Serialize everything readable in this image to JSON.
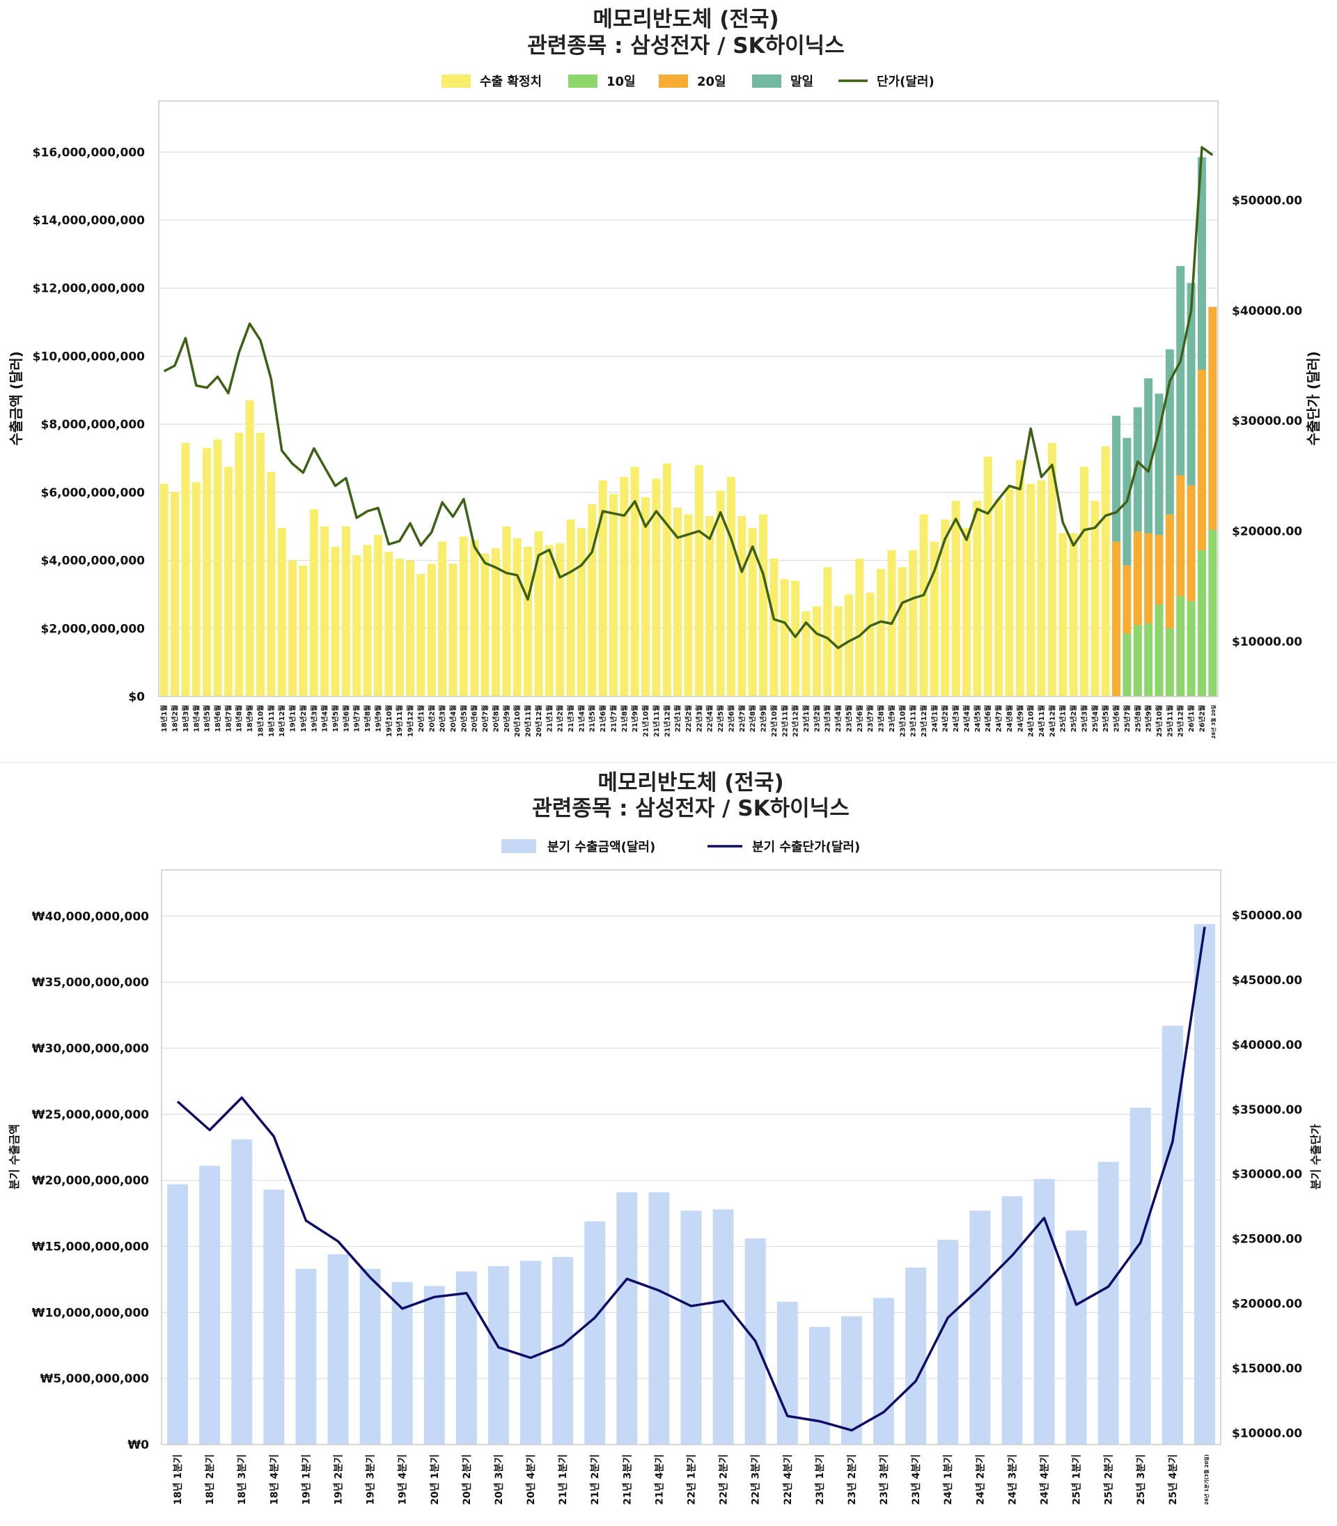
{
  "chart_data": [
    {
      "type": "bar",
      "title": [
        "메모리반도체 (전국)",
        "관련종목 : 삼성전자 / SK하이닉스"
      ],
      "ylabel_left": "수출금액 (달러)",
      "ylabel_right": "수출단가 (달러)",
      "ylim_left": [
        0,
        17500000000
      ],
      "yticks_left": [
        "$0",
        "$2,000,000,000",
        "$4,000,000,000",
        "$6,000,000,000",
        "$8,000,000,000",
        "$10,000,000,000",
        "$12,000,000,000",
        "$14,000,000,000",
        "$16,000,000,000"
      ],
      "ylim_right": [
        5000,
        59000
      ],
      "yticks_right": [
        "$10000.00",
        "$20000.00",
        "$30000.00",
        "$40000.00",
        "$50000.00"
      ],
      "legend": [
        "수출 확정치",
        "10일",
        "20일",
        "말일",
        "단가(달러)"
      ],
      "colors": {
        "confirmed": "#f9ee6b",
        "d10": "#8cd66c",
        "d20": "#f7ac33",
        "end": "#73b8a0",
        "price": "#3d6115"
      },
      "categories": [
        "18년1월",
        "18년2월",
        "18년3월",
        "18년4월",
        "18년5월",
        "18년6월",
        "18년7월",
        "18년8월",
        "18년9월",
        "18년10월",
        "18년11월",
        "18년12월",
        "19년1월",
        "19년2월",
        "19년3월",
        "19년4월",
        "19년5월",
        "19년6월",
        "19년7월",
        "19년8월",
        "19년9월",
        "19년10월",
        "19년11월",
        "19년12월",
        "20년1월",
        "20년2월",
        "20년3월",
        "20년4월",
        "20년5월",
        "20년6월",
        "20년7월",
        "20년8월",
        "20년9월",
        "20년10월",
        "20년11월",
        "20년12월",
        "21년1월",
        "21년2월",
        "21년3월",
        "21년4월",
        "21년5월",
        "21년6월",
        "21년7월",
        "21년8월",
        "21년9월",
        "21년10월",
        "21년11월",
        "21년12월",
        "22년1월",
        "22년2월",
        "22년3월",
        "22년4월",
        "22년5월",
        "22년6월",
        "22년7월",
        "22년8월",
        "22년9월",
        "22년10월",
        "22년11월",
        "22년12월",
        "23년1월",
        "23년2월",
        "23년3월",
        "23년4월",
        "23년5월",
        "23년6월",
        "23년7월",
        "23년8월",
        "23년9월",
        "23년10월",
        "23년11월",
        "23년12월",
        "24년1월",
        "24년2월",
        "24년3월",
        "24년4월",
        "24년5월",
        "24년6월",
        "24년7월",
        "24년8월",
        "24년9월",
        "24년10월",
        "24년11월",
        "24년12월",
        "25년1월",
        "25년2월",
        "25년3월",
        "25년4월",
        "25년5월",
        "25년6월",
        "25년7월",
        "25년8월",
        "25년9월",
        "25년10월",
        "25년11월",
        "25년12월",
        "26년1월",
        "26년2월",
        "26년 3월 20일"
      ],
      "series": [
        {
          "name": "수출 확정치",
          "values": [
            6250000000,
            6000000000,
            7450000000,
            6300000000,
            7300000000,
            7550000000,
            6750000000,
            7750000000,
            8700000000,
            7750000000,
            6600000000,
            4950000000,
            4000000000,
            3850000000,
            5500000000,
            5000000000,
            4400000000,
            5000000000,
            4150000000,
            4450000000,
            4750000000,
            4250000000,
            4050000000,
            4000000000,
            3600000000,
            3900000000,
            4550000000,
            3900000000,
            4700000000,
            4600000000,
            4200000000,
            4350000000,
            5000000000,
            4650000000,
            4400000000,
            4850000000,
            4450000000,
            4500000000,
            5200000000,
            4950000000,
            5650000000,
            6350000000,
            5950000000,
            6450000000,
            6750000000,
            5850000000,
            6400000000,
            6850000000,
            5550000000,
            5350000000,
            6800000000,
            5300000000,
            6050000000,
            6450000000,
            5300000000,
            4950000000,
            5350000000,
            4050000000,
            3450000000,
            3400000000,
            2500000000,
            2650000000,
            3800000000,
            2650000000,
            3000000000,
            4050000000,
            3050000000,
            3750000000,
            4300000000,
            3800000000,
            4300000000,
            5350000000,
            4550000000,
            5200000000,
            5750000000,
            4950000000,
            5750000000,
            7050000000,
            5800000000,
            6150000000,
            6950000000,
            6250000000,
            6350000000,
            7450000000,
            4800000000,
            4800000000,
            6750000000,
            5750000000,
            7350000000,
            0,
            0,
            0,
            0,
            0,
            0,
            0,
            0,
            0,
            0
          ]
        },
        {
          "name": "10일",
          "values": [
            0,
            0,
            0,
            0,
            0,
            0,
            0,
            0,
            0,
            0,
            0,
            0,
            0,
            0,
            0,
            0,
            0,
            0,
            0,
            0,
            0,
            0,
            0,
            0,
            0,
            0,
            0,
            0,
            0,
            0,
            0,
            0,
            0,
            0,
            0,
            0,
            0,
            0,
            0,
            0,
            0,
            0,
            0,
            0,
            0,
            0,
            0,
            0,
            0,
            0,
            0,
            0,
            0,
            0,
            0,
            0,
            0,
            0,
            0,
            0,
            0,
            0,
            0,
            0,
            0,
            0,
            0,
            0,
            0,
            0,
            0,
            0,
            0,
            0,
            0,
            0,
            0,
            0,
            0,
            0,
            0,
            0,
            0,
            0,
            0,
            0,
            0,
            0,
            0,
            0,
            1850000000,
            2100000000,
            2150000000,
            2700000000,
            2000000000,
            2950000000,
            2800000000,
            4300000000,
            4900000000
          ]
        },
        {
          "name": "20일",
          "values": [
            0,
            0,
            0,
            0,
            0,
            0,
            0,
            0,
            0,
            0,
            0,
            0,
            0,
            0,
            0,
            0,
            0,
            0,
            0,
            0,
            0,
            0,
            0,
            0,
            0,
            0,
            0,
            0,
            0,
            0,
            0,
            0,
            0,
            0,
            0,
            0,
            0,
            0,
            0,
            0,
            0,
            0,
            0,
            0,
            0,
            0,
            0,
            0,
            0,
            0,
            0,
            0,
            0,
            0,
            0,
            0,
            0,
            0,
            0,
            0,
            0,
            0,
            0,
            0,
            0,
            0,
            0,
            0,
            0,
            0,
            0,
            0,
            0,
            0,
            0,
            0,
            0,
            0,
            0,
            0,
            0,
            0,
            0,
            0,
            0,
            0,
            0,
            0,
            0,
            4550000000,
            2000000000,
            2750000000,
            2650000000,
            2050000000,
            3350000000,
            3550000000,
            3400000000,
            5300000000,
            6550000000
          ]
        },
        {
          "name": "말일",
          "values": [
            0,
            0,
            0,
            0,
            0,
            0,
            0,
            0,
            0,
            0,
            0,
            0,
            0,
            0,
            0,
            0,
            0,
            0,
            0,
            0,
            0,
            0,
            0,
            0,
            0,
            0,
            0,
            0,
            0,
            0,
            0,
            0,
            0,
            0,
            0,
            0,
            0,
            0,
            0,
            0,
            0,
            0,
            0,
            0,
            0,
            0,
            0,
            0,
            0,
            0,
            0,
            0,
            0,
            0,
            0,
            0,
            0,
            0,
            0,
            0,
            0,
            0,
            0,
            0,
            0,
            0,
            0,
            0,
            0,
            0,
            0,
            0,
            0,
            0,
            0,
            0,
            0,
            0,
            0,
            0,
            0,
            0,
            0,
            0,
            0,
            0,
            0,
            0,
            0,
            3700000000,
            3750000000,
            3650000000,
            4550000000,
            4150000000,
            4850000000,
            6150000000,
            5950000000,
            6250000000,
            0
          ]
        },
        {
          "name": "단가(달러)",
          "axis": "right",
          "values": [
            34500,
            35000,
            37500,
            33200,
            33000,
            34000,
            32500,
            36200,
            38800,
            37300,
            33800,
            27300,
            26100,
            25300,
            27500,
            25800,
            24100,
            24800,
            21200,
            21800,
            22100,
            18800,
            19100,
            20700,
            18700,
            19900,
            22600,
            21300,
            22900,
            18600,
            17100,
            16700,
            16200,
            16000,
            13800,
            17800,
            18300,
            15800,
            16300,
            16900,
            18100,
            21800,
            21600,
            21400,
            22700,
            20400,
            21800,
            20600,
            19400,
            19700,
            20000,
            19300,
            21700,
            19300,
            16300,
            18600,
            16100,
            12000,
            11700,
            10400,
            11700,
            10700,
            10300,
            9400,
            10000,
            10500,
            11400,
            11800,
            11600,
            13500,
            13900,
            14200,
            16400,
            19300,
            21100,
            19200,
            22000,
            21600,
            22900,
            24100,
            23800,
            29300,
            24900,
            26000,
            20800,
            18700,
            20100,
            20300,
            21400,
            21700,
            22700,
            26300,
            25400,
            29100,
            33600,
            35400,
            40000,
            54800,
            54100
          ]
        }
      ]
    },
    {
      "type": "bar",
      "title": [
        "메모리반도체 (전국)",
        "관련종목 : 삼성전자 / SK하이닉스"
      ],
      "ylabel_left": "분기 수출금액",
      "ylabel_right": "분기 수출단가",
      "ylim_left": [
        0,
        43500000000
      ],
      "yticks_left": [
        "₩0",
        "₩5,000,000,000",
        "₩10,000,000,000",
        "₩15,000,000,000",
        "₩20,000,000,000",
        "₩25,000,000,000",
        "₩30,000,000,000",
        "₩35,000,000,000",
        "₩40,000,000,000"
      ],
      "ylim_right": [
        9100,
        53500
      ],
      "yticks_right": [
        "$10000.00",
        "$15000.00",
        "$20000.00",
        "$25000.00",
        "$30000.00",
        "$35000.00",
        "$40000.00",
        "$45000.00",
        "$50000.00"
      ],
      "legend": [
        "분기 수출금액(달러)",
        "분기 수출단가(달러)"
      ],
      "colors": {
        "bar": "#c5d8f5",
        "price": "#0d0d66"
      },
      "categories": [
        "18년 1분기",
        "18년 2분기",
        "18년 3분기",
        "18년 4분기",
        "19년 1분기",
        "19년 2분기",
        "19년 3분기",
        "19년 4분기",
        "20년 1분기",
        "20년 2분기",
        "20년 3분기",
        "20년 4분기",
        "21년 1분기",
        "21년 2분기",
        "21년 3분기",
        "21년 4분기",
        "22년 1분기",
        "22년 2분기",
        "22년 3분기",
        "22년 4분기",
        "23년 1분기",
        "23년 2분기",
        "23년 3분기",
        "23년 4분기",
        "24년 1분기",
        "24년 2분기",
        "24년 3분기",
        "24년 4분기",
        "25년 1분기",
        "25년 2분기",
        "25년 3분기",
        "25년 4분기",
        "26년 1분기(3월 20일)"
      ],
      "series": [
        {
          "name": "분기 수출금액(달러)",
          "values": [
            19700000000,
            21100000000,
            23100000000,
            19300000000,
            13300000000,
            14400000000,
            13300000000,
            12300000000,
            12000000000,
            13100000000,
            13500000000,
            13900000000,
            14200000000,
            16900000000,
            19100000000,
            19100000000,
            17700000000,
            17800000000,
            15600000000,
            10800000000,
            8900000000,
            9700000000,
            11100000000,
            13400000000,
            15500000000,
            17700000000,
            18800000000,
            20100000000,
            16200000000,
            21400000000,
            25500000000,
            31700000000,
            39400000000
          ]
        },
        {
          "name": "분기 수출단가(달러)",
          "axis": "right",
          "values": [
            35600,
            33400,
            35900,
            32900,
            26400,
            24800,
            22000,
            19600,
            20500,
            20800,
            16600,
            15800,
            16800,
            18900,
            21900,
            21000,
            19800,
            20200,
            17100,
            11300,
            10900,
            10200,
            11600,
            14000,
            18900,
            21200,
            23700,
            26600,
            19900,
            21300,
            24700,
            32500,
            49100
          ]
        }
      ]
    }
  ]
}
